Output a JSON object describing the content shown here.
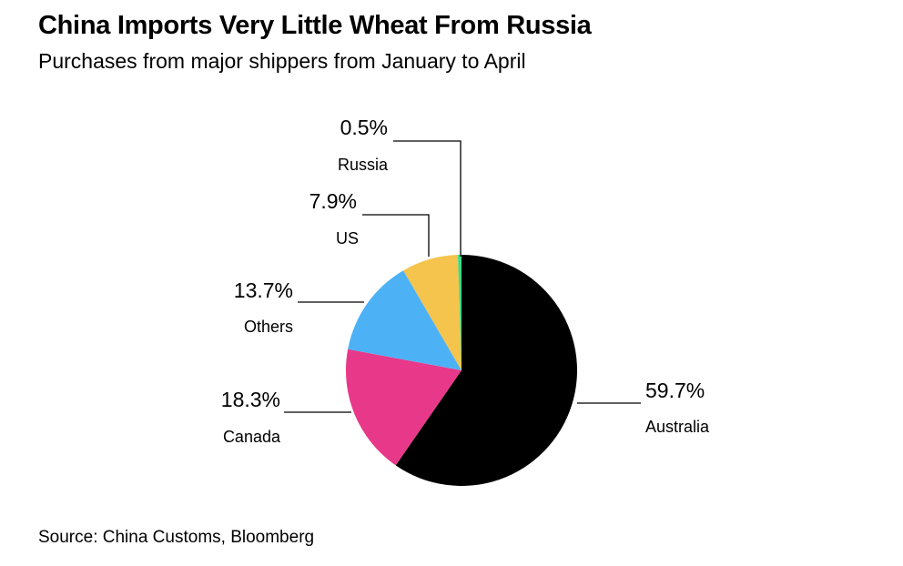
{
  "header": {
    "title": "China Imports Very Little Wheat From Russia",
    "subtitle": "Purchases from major shippers from January to April"
  },
  "footer": {
    "source": "Source: China Customs, Bloomberg"
  },
  "chart_data": {
    "type": "pie",
    "title": "China Imports Very Little Wheat From Russia",
    "subtitle": "Purchases from major shippers from January to April",
    "slices": [
      {
        "label": "Australia",
        "value": 59.7,
        "display": "59.7%",
        "color": "#000000"
      },
      {
        "label": "Canada",
        "value": 18.3,
        "display": "18.3%",
        "color": "#e8388a"
      },
      {
        "label": "Others",
        "value": 13.7,
        "display": "13.7%",
        "color": "#4db2f5"
      },
      {
        "label": "US",
        "value": 7.9,
        "display": "7.9%",
        "color": "#f5c44c"
      },
      {
        "label": "Russia",
        "value": 0.5,
        "display": "0.5%",
        "color": "#3ddb8a"
      }
    ],
    "start_angle_deg": 0,
    "direction": "clockwise",
    "legend": "none"
  }
}
